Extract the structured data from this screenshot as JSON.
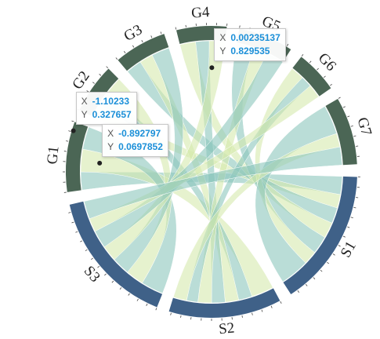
{
  "chart_data": {
    "type": "chord",
    "groups": [
      {
        "name": "S1",
        "value": 55,
        "color": "#3f6188"
      },
      {
        "name": "S2",
        "value": 45,
        "color": "#3f6188"
      },
      {
        "name": "S3",
        "value": 55,
        "color": "#3f6188"
      },
      {
        "name": "G1",
        "value": 28,
        "color": "#4b6655"
      },
      {
        "name": "G2",
        "value": 20,
        "color": "#4b6655"
      },
      {
        "name": "G3",
        "value": 21,
        "color": "#4b6655"
      },
      {
        "name": "G4",
        "value": 20,
        "color": "#4b6655"
      },
      {
        "name": "G5",
        "value": 22,
        "color": "#4b6655"
      },
      {
        "name": "G6",
        "value": 17,
        "color": "#4b6655"
      },
      {
        "name": "G7",
        "value": 27,
        "color": "#4b6655"
      }
    ],
    "ribbon_colors": [
      "#8cc6bd",
      "#d5e9ae"
    ],
    "links": [
      {
        "source": "G1",
        "target": "S1",
        "value": 8
      },
      {
        "source": "G1",
        "target": "S2",
        "value": 10
      },
      {
        "source": "G1",
        "target": "S3",
        "value": 10
      },
      {
        "source": "G2",
        "target": "S1",
        "value": 6
      },
      {
        "source": "G2",
        "target": "S2",
        "value": 6
      },
      {
        "source": "G2",
        "target": "S3",
        "value": 8
      },
      {
        "source": "G3",
        "target": "S1",
        "value": 7
      },
      {
        "source": "G3",
        "target": "S2",
        "value": 6
      },
      {
        "source": "G3",
        "target": "S3",
        "value": 8
      },
      {
        "source": "G4",
        "target": "S1",
        "value": 7
      },
      {
        "source": "G4",
        "target": "S2",
        "value": 6
      },
      {
        "source": "G4",
        "target": "S3",
        "value": 7
      },
      {
        "source": "G5",
        "target": "S1",
        "value": 8
      },
      {
        "source": "G5",
        "target": "S2",
        "value": 6
      },
      {
        "source": "G5",
        "target": "S3",
        "value": 8
      },
      {
        "source": "G6",
        "target": "S1",
        "value": 6
      },
      {
        "source": "G6",
        "target": "S2",
        "value": 5
      },
      {
        "source": "G6",
        "target": "S3",
        "value": 6
      },
      {
        "source": "G7",
        "target": "S1",
        "value": 13
      },
      {
        "source": "G7",
        "target": "S2",
        "value": 6
      },
      {
        "source": "G7",
        "target": "S3",
        "value": 8
      }
    ],
    "tooltips": [
      {
        "x_label": "X",
        "y_label": "Y",
        "x": -1.10233,
        "y": 0.327657
      },
      {
        "x_label": "X",
        "y_label": "Y",
        "x": -0.892797,
        "y": 0.0697852
      },
      {
        "x_label": "X",
        "y_label": "Y",
        "x": 0.00235137,
        "y": 0.829535
      }
    ]
  }
}
